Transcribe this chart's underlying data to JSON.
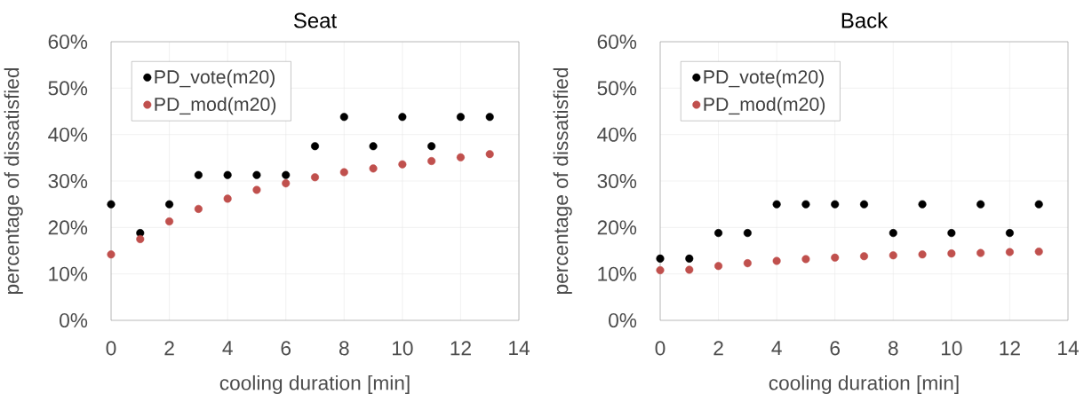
{
  "chart_data": [
    {
      "type": "scatter",
      "title": "Seat",
      "xlabel": "cooling duration [min]",
      "ylabel": "percentage of dissatisfied",
      "x": [
        0,
        1,
        2,
        3,
        4,
        5,
        6,
        7,
        8,
        9,
        10,
        11,
        12,
        13
      ],
      "series": [
        {
          "name": "PD_vote(m20)",
          "color": "#000000",
          "values": [
            25,
            18.8,
            25,
            31.3,
            31.3,
            31.3,
            31.3,
            37.5,
            43.8,
            37.5,
            43.8,
            37.5,
            43.8,
            43.8
          ]
        },
        {
          "name": "PD_mod(m20)",
          "color": "#c0504d",
          "values": [
            14.2,
            17.5,
            21.3,
            24.0,
            26.2,
            28.1,
            29.5,
            30.8,
            31.9,
            32.7,
            33.6,
            34.3,
            35.1,
            35.8
          ]
        }
      ],
      "xlim": [
        0,
        14
      ],
      "xticks": [
        0,
        2,
        4,
        6,
        8,
        10,
        12,
        14
      ],
      "ylim": [
        0,
        60
      ],
      "yticks": [
        {
          "value": 0,
          "label": "0%"
        },
        {
          "value": 10,
          "label": "10%"
        },
        {
          "value": 20,
          "label": "20%"
        },
        {
          "value": 30,
          "label": "30%"
        },
        {
          "value": 40,
          "label": "40%"
        },
        {
          "value": 50,
          "label": "50%"
        },
        {
          "value": 60,
          "label": "60%"
        }
      ],
      "grid": true,
      "legend": "top left",
      "marker": "circle"
    },
    {
      "type": "scatter",
      "title": "Back",
      "xlabel": "cooling duration [min]",
      "ylabel": "percentage of dissatisfied",
      "x": [
        0,
        1,
        2,
        3,
        4,
        5,
        6,
        7,
        8,
        9,
        10,
        11,
        12,
        13
      ],
      "series": [
        {
          "name": "PD_vote(m20)",
          "color": "#000000",
          "values": [
            13.3,
            13.3,
            18.8,
            18.8,
            25,
            25,
            25,
            25,
            18.8,
            25,
            18.8,
            25,
            18.8,
            25
          ]
        },
        {
          "name": "PD_mod(m20)",
          "color": "#c0504d",
          "values": [
            10.8,
            10.9,
            11.7,
            12.3,
            12.8,
            13.2,
            13.5,
            13.8,
            14.0,
            14.2,
            14.4,
            14.5,
            14.7,
            14.8
          ]
        }
      ],
      "xlim": [
        0,
        14
      ],
      "xticks": [
        0,
        2,
        4,
        6,
        8,
        10,
        12,
        14
      ],
      "ylim": [
        0,
        60
      ],
      "yticks": [
        {
          "value": 0,
          "label": "0%"
        },
        {
          "value": 10,
          "label": "10%"
        },
        {
          "value": 20,
          "label": "20%"
        },
        {
          "value": 30,
          "label": "30%"
        },
        {
          "value": 40,
          "label": "40%"
        },
        {
          "value": 50,
          "label": "50%"
        },
        {
          "value": 60,
          "label": "60%"
        }
      ],
      "grid": true,
      "legend": "top left",
      "marker": "circle"
    }
  ]
}
